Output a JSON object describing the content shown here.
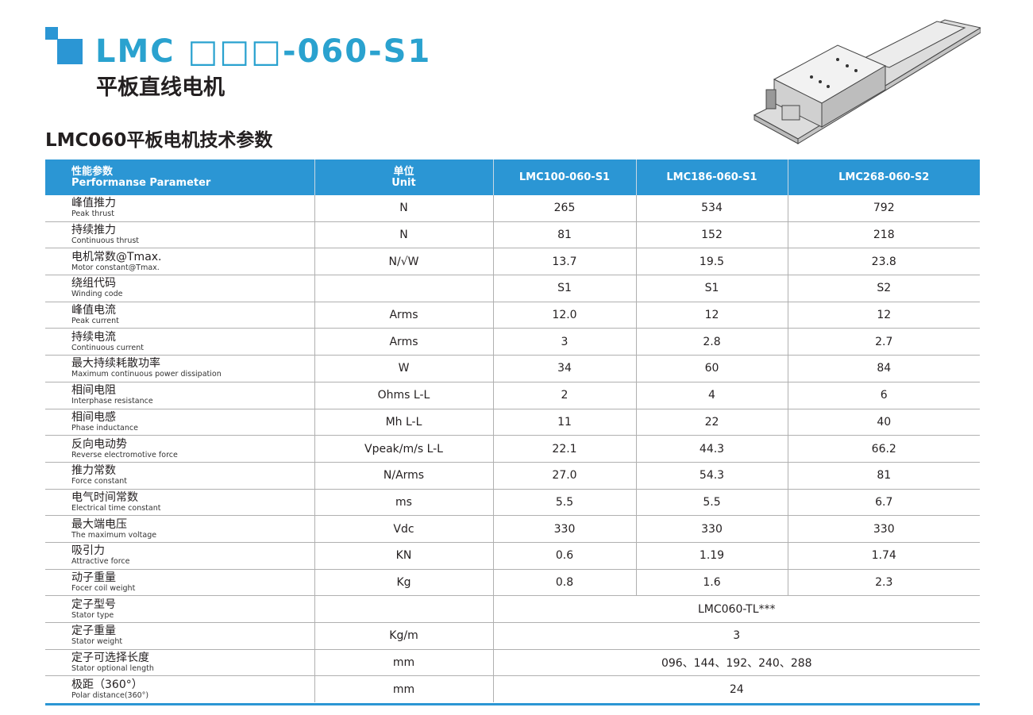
{
  "header": {
    "title": "LMC □□□-060-S1",
    "subtitle": "平板直线电机",
    "section_title": "LMC060平板电机技术参数"
  },
  "colors": {
    "accent": "#2b96d4",
    "title": "#2aa2cf"
  },
  "product_image": "flat linear motor illustration",
  "table": {
    "headers": {
      "param_zh": "性能参数",
      "param_en": "Performanse Parameter",
      "unit_zh": "单位",
      "unit_en": "Unit",
      "models": [
        "LMC100-060-S1",
        "LMC186-060-S1",
        "LMC268-060-S2"
      ]
    },
    "rows": [
      {
        "zh": "峰值推力",
        "en": "Peak thrust",
        "unit": "N",
        "values": [
          "265",
          "534",
          "792"
        ]
      },
      {
        "zh": "持续推力",
        "en": "Continuous thrust",
        "unit": "N",
        "values": [
          "81",
          "152",
          "218"
        ]
      },
      {
        "zh": "电机常数@Tmax.",
        "en": "Motor constant@Tmax.",
        "unit": "N/√W",
        "values": [
          "13.7",
          "19.5",
          "23.8"
        ]
      },
      {
        "zh": "绕组代码",
        "en": "Winding code",
        "unit": "",
        "values": [
          "S1",
          "S1",
          "S2"
        ]
      },
      {
        "zh": "峰值电流",
        "en": "Peak current",
        "unit": "Arms",
        "values": [
          "12.0",
          "12",
          "12"
        ]
      },
      {
        "zh": "持续电流",
        "en": "Continuous current",
        "unit": "Arms",
        "values": [
          "3",
          "2.8",
          "2.7"
        ]
      },
      {
        "zh": "最大持续耗散功率",
        "en": "Maximum continuous power dissipation",
        "unit": "W",
        "values": [
          "34",
          "60",
          "84"
        ]
      },
      {
        "zh": "相间电阻",
        "en": "Interphase resistance",
        "unit": "Ohms L-L",
        "values": [
          "2",
          "4",
          "6"
        ]
      },
      {
        "zh": "相间电感",
        "en": "Phase inductance",
        "unit": "Mh L-L",
        "values": [
          "11",
          "22",
          "40"
        ]
      },
      {
        "zh": "反向电动势",
        "en": "Reverse electromotive force",
        "unit": "Vpeak/m/s L-L",
        "values": [
          "22.1",
          "44.3",
          "66.2"
        ]
      },
      {
        "zh": "推力常数",
        "en": "Force constant",
        "unit": "N/Arms",
        "values": [
          "27.0",
          "54.3",
          "81"
        ]
      },
      {
        "zh": "电气时间常数",
        "en": "Electrical time constant",
        "unit": "ms",
        "values": [
          "5.5",
          "5.5",
          "6.7"
        ]
      },
      {
        "zh": "最大端电压",
        "en": "The maximum voltage",
        "unit": "Vdc",
        "values": [
          "330",
          "330",
          "330"
        ]
      },
      {
        "zh": "吸引力",
        "en": "Attractive force",
        "unit": "KN",
        "values": [
          "0.6",
          "1.19",
          "1.74"
        ]
      },
      {
        "zh": "动子重量",
        "en": "Focer coil weight",
        "unit": "Kg",
        "values": [
          "0.8",
          "1.6",
          "2.3"
        ]
      },
      {
        "zh": "定子型号",
        "en": "Stator type",
        "unit": "",
        "values": [
          "LMC060-TL***"
        ]
      },
      {
        "zh": "定子重量",
        "en": "Stator weight",
        "unit": "Kg/m",
        "values": [
          "3"
        ]
      },
      {
        "zh": "定子可选择长度",
        "en": "Stator optional length",
        "unit": "mm",
        "values": [
          "096、144、192、240、288"
        ]
      },
      {
        "zh": "极距（360°）",
        "en": "Polar distance(360°)",
        "unit": "mm",
        "values": [
          "24"
        ]
      }
    ]
  }
}
